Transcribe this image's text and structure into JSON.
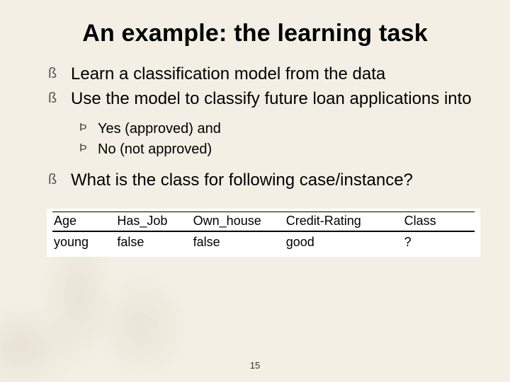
{
  "slide": {
    "title": "An example: the learning task",
    "bullets_level1_a": [
      "Learn a classification model from the data",
      "Use the model to classify future loan applications into"
    ],
    "bullets_level2": [
      "Yes (approved) and",
      "No (not approved)"
    ],
    "bullets_level1_b": [
      "What is the class for following case/instance?"
    ],
    "page_number": "15",
    "background_color": "#f3efe4"
  },
  "table": {
    "columns": [
      "Age",
      "Has_Job",
      "Own_house",
      "Credit-Rating",
      "Class"
    ],
    "rows": [
      [
        "young",
        "false",
        "false",
        "good",
        "?"
      ]
    ],
    "header_border_color": "#000000",
    "background_color": "#ffffff",
    "font_size_pt": 14,
    "col_widths_pct": [
      15,
      18,
      22,
      28,
      17
    ]
  },
  "typography": {
    "title_fontsize_pt": 26,
    "bullet1_fontsize_pt": 18,
    "bullet2_fontsize_pt": 15,
    "font_family": "Arial"
  }
}
